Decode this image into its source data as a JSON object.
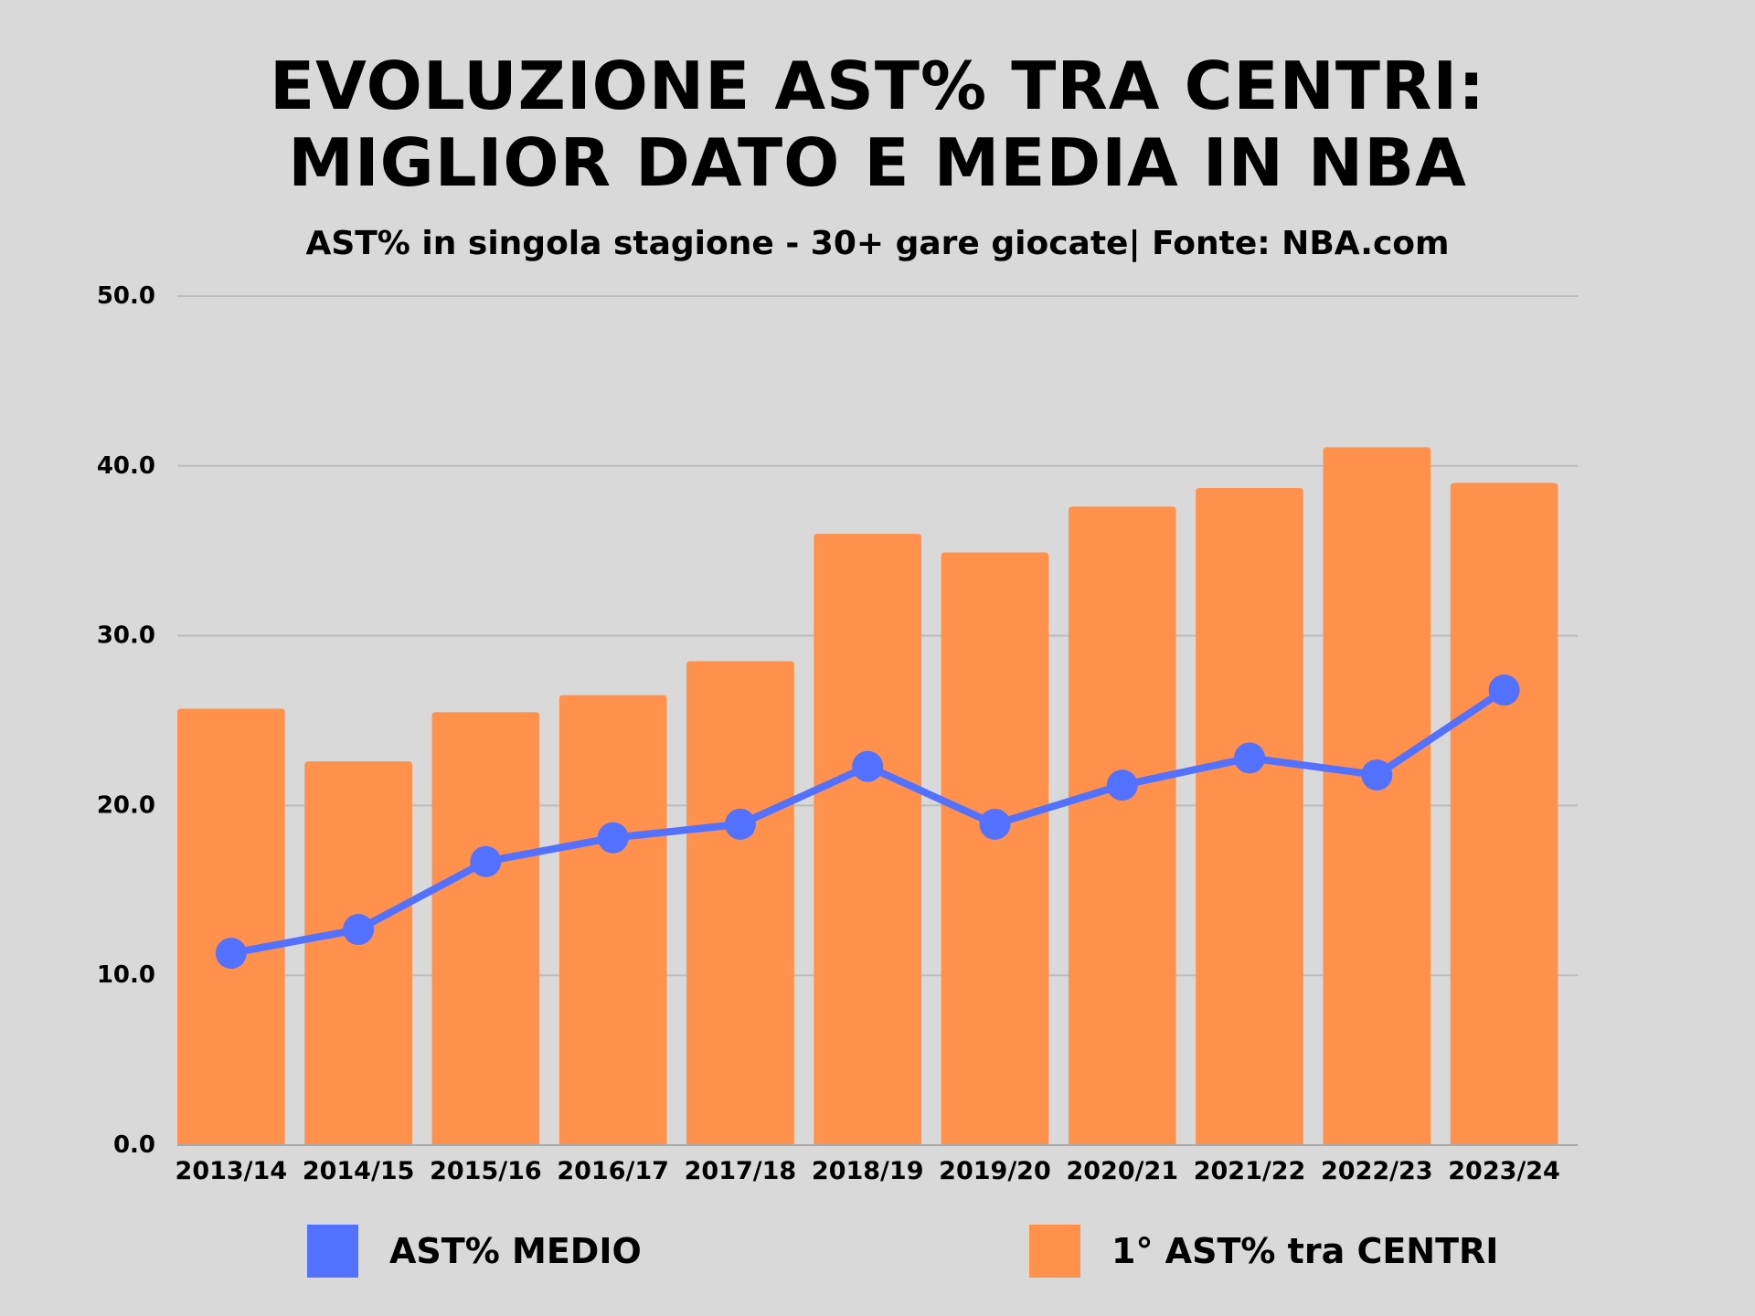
{
  "chart_data": {
    "type": "bar",
    "title_line1": "EVOLUZIONE AST% TRA CENTRI:",
    "title_line2": "MIGLIOR DATO E MEDIA IN NBA",
    "subtitle": "AST% in singola stagione - 30+ gare giocate| Fonte: NBA.com",
    "categories": [
      "2013/14",
      "2014/15",
      "2015/16",
      "2016/17",
      "2017/18",
      "2018/19",
      "2019/20",
      "2020/21",
      "2021/22",
      "2022/23",
      "2023/24"
    ],
    "ylim": [
      0,
      50
    ],
    "yticks": [
      "0.0",
      "10.0",
      "20.0",
      "30.0",
      "40.0",
      "50.0"
    ],
    "grid": true,
    "legend_position": "bottom",
    "series": [
      {
        "name": "1° AST% tra CENTRI",
        "type": "bar",
        "color": "#ff914d",
        "values": [
          25.7,
          22.6,
          25.5,
          26.5,
          28.5,
          36.0,
          34.9,
          37.6,
          38.7,
          41.1,
          39.0
        ]
      },
      {
        "name": "AST% MEDIO",
        "type": "line",
        "color": "#5271ff",
        "values": [
          11.3,
          12.7,
          16.7,
          18.1,
          18.9,
          22.3,
          18.9,
          21.2,
          22.8,
          21.8,
          26.8
        ]
      }
    ]
  }
}
